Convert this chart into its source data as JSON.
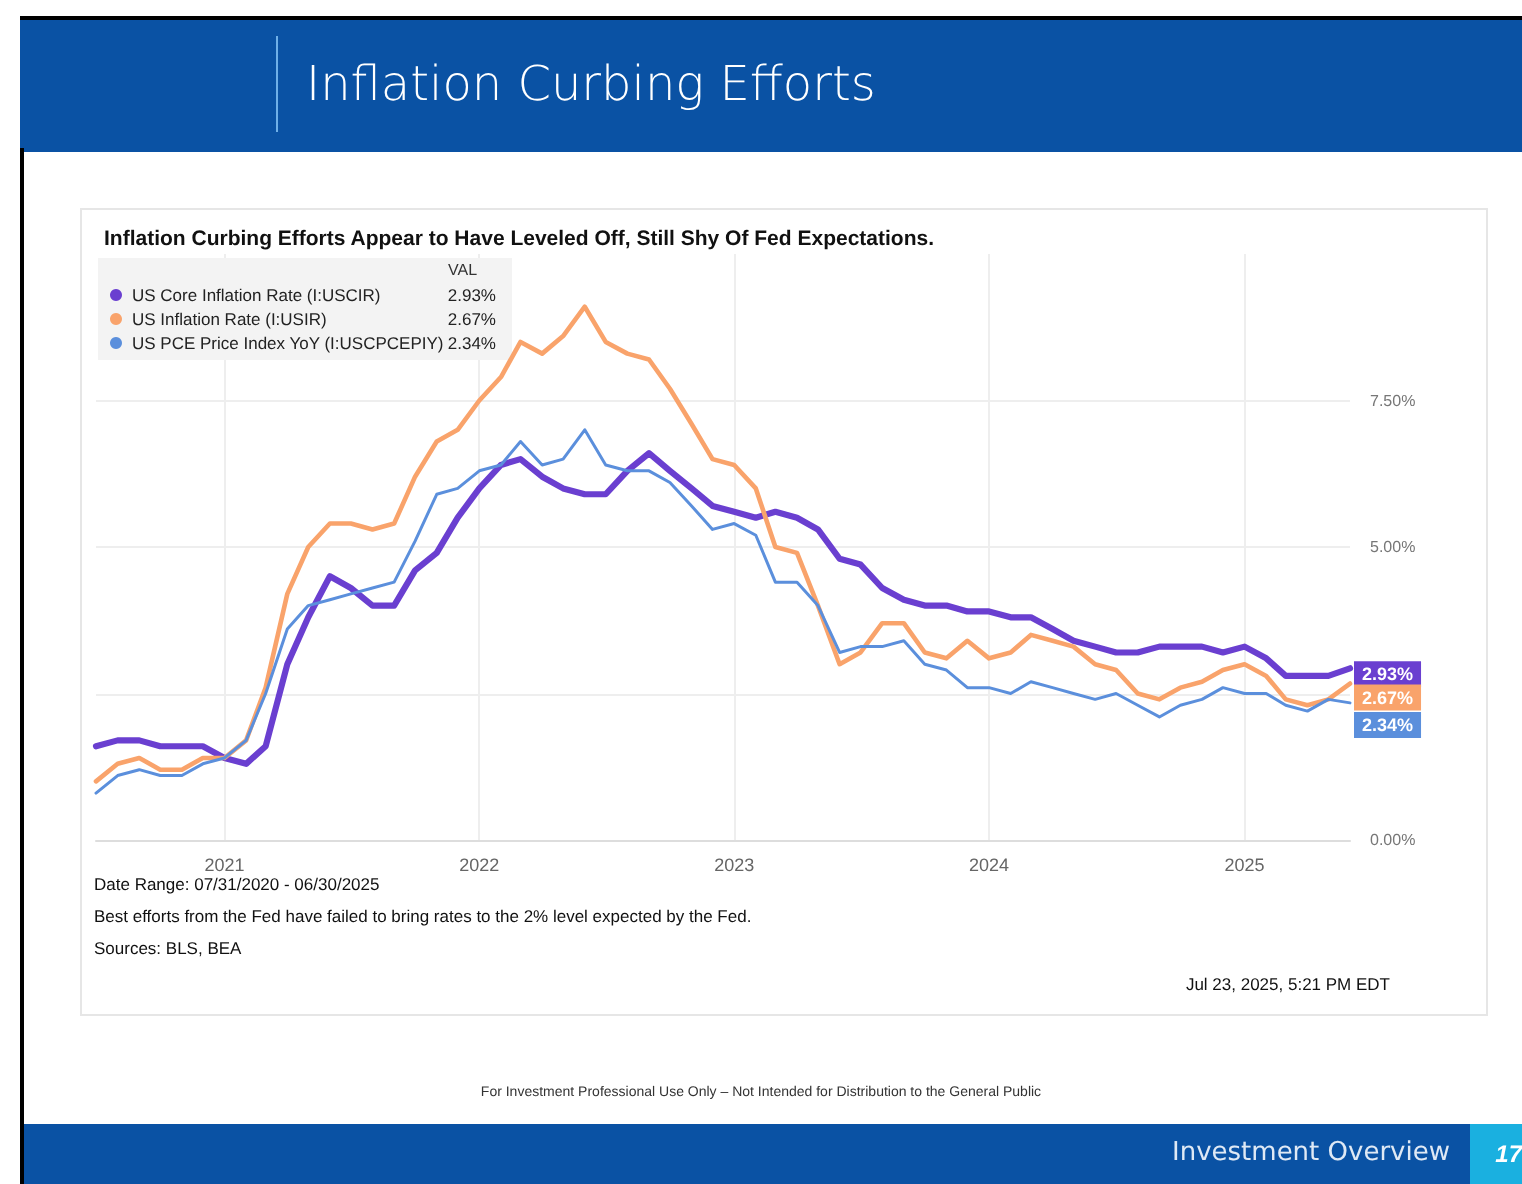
{
  "chart_data": {
    "type": "line",
    "title": "Inflation Curbing Efforts",
    "subtitle": "Inflation Curbing Efforts Appear to Have Leveled Off, Still Shy Of Fed Expectations.",
    "legend_title": "VAL",
    "annotations": [
      "Date Range: 07/31/2020 - 06/30/2025",
      "Best efforts from the Fed have failed to bring rates to the 2% level expected by the Fed.",
      "Sources: BLS, BEA",
      "Jul 23, 2025, 5:21 PM EDT",
      "For Investment Professional Use Only – Not Intended for Distribution to the General Public",
      "Investment Overview",
      "17"
    ],
    "x": [
      "2020-07",
      "2020-08",
      "2020-09",
      "2020-10",
      "2020-11",
      "2020-12",
      "2021-01",
      "2021-02",
      "2021-03",
      "2021-04",
      "2021-05",
      "2021-06",
      "2021-07",
      "2021-08",
      "2021-09",
      "2021-10",
      "2021-11",
      "2021-12",
      "2022-01",
      "2022-02",
      "2022-03",
      "2022-04",
      "2022-05",
      "2022-06",
      "2022-07",
      "2022-08",
      "2022-09",
      "2022-10",
      "2022-11",
      "2022-12",
      "2023-01",
      "2023-02",
      "2023-03",
      "2023-04",
      "2023-05",
      "2023-06",
      "2023-07",
      "2023-08",
      "2023-09",
      "2023-10",
      "2023-11",
      "2023-12",
      "2024-01",
      "2024-02",
      "2024-03",
      "2024-04",
      "2024-05",
      "2024-06",
      "2024-07",
      "2024-08",
      "2024-09",
      "2024-10",
      "2024-11",
      "2024-12",
      "2025-01",
      "2025-02",
      "2025-03",
      "2025-04",
      "2025-05",
      "2025-06"
    ],
    "xlim": [
      "2020-07",
      "2025-06"
    ],
    "xticks": [
      {
        "value": "2021",
        "label": "2021"
      },
      {
        "value": "2022",
        "label": "2022"
      },
      {
        "value": "2023",
        "label": "2023"
      },
      {
        "value": "2024",
        "label": "2024"
      },
      {
        "value": "2025",
        "label": "2025"
      }
    ],
    "ylim": [
      0,
      10
    ],
    "yticks": [
      {
        "value": 0,
        "label": "0.00%"
      },
      {
        "value": 2.5,
        "label": null
      },
      {
        "value": 5,
        "label": "5.00%"
      },
      {
        "value": 7.5,
        "label": "7.50%"
      }
    ],
    "grid": true,
    "legend": "top left",
    "marker": "none",
    "line_style": "solid",
    "series": [
      {
        "name": "US Core Inflation Rate (I:USCIR)",
        "color": "#6a3fd0",
        "values": [
          1.6,
          1.7,
          1.7,
          1.6,
          1.6,
          1.6,
          1.4,
          1.3,
          1.6,
          3.0,
          3.8,
          4.5,
          4.3,
          4.0,
          4.0,
          4.6,
          4.9,
          5.5,
          6.0,
          6.4,
          6.5,
          6.2,
          6.0,
          5.9,
          5.9,
          6.3,
          6.6,
          6.3,
          6.0,
          5.7,
          5.6,
          5.5,
          5.6,
          5.5,
          5.3,
          4.8,
          4.7,
          4.3,
          4.1,
          4.0,
          4.0,
          3.9,
          3.9,
          3.8,
          3.8,
          3.6,
          3.4,
          3.3,
          3.2,
          3.2,
          3.3,
          3.3,
          3.3,
          3.2,
          3.3,
          3.1,
          2.8,
          2.8,
          2.8,
          2.93
        ],
        "value_labels": [
          null,
          null,
          null,
          null,
          null,
          null,
          null,
          null,
          null,
          null,
          null,
          null,
          null,
          null,
          null,
          null,
          null,
          null,
          null,
          null,
          null,
          null,
          null,
          null,
          null,
          null,
          null,
          null,
          null,
          null,
          null,
          null,
          null,
          null,
          null,
          null,
          null,
          null,
          null,
          null,
          null,
          null,
          null,
          null,
          null,
          null,
          null,
          null,
          null,
          null,
          null,
          null,
          null,
          null,
          null,
          null,
          null,
          null,
          null,
          "2.93%"
        ]
      },
      {
        "name": "US Inflation Rate (I:USIR)",
        "color": "#f9a36b",
        "values": [
          1.0,
          1.3,
          1.4,
          1.2,
          1.2,
          1.4,
          1.4,
          1.7,
          2.6,
          4.2,
          5.0,
          5.4,
          5.4,
          5.3,
          5.4,
          6.2,
          6.8,
          7.0,
          7.5,
          7.9,
          8.5,
          8.3,
          8.6,
          9.1,
          8.5,
          8.3,
          8.2,
          7.7,
          7.1,
          6.5,
          6.4,
          6.0,
          5.0,
          4.9,
          4.0,
          3.0,
          3.2,
          3.7,
          3.7,
          3.2,
          3.1,
          3.4,
          3.1,
          3.2,
          3.5,
          3.4,
          3.3,
          3.0,
          2.9,
          2.5,
          2.4,
          2.6,
          2.7,
          2.9,
          3.0,
          2.8,
          2.4,
          2.3,
          2.4,
          2.67
        ],
        "value_labels": [
          null,
          null,
          null,
          null,
          null,
          null,
          null,
          null,
          null,
          null,
          null,
          null,
          null,
          null,
          null,
          null,
          null,
          null,
          null,
          null,
          null,
          null,
          null,
          null,
          null,
          null,
          null,
          null,
          null,
          null,
          null,
          null,
          null,
          null,
          null,
          null,
          null,
          null,
          null,
          null,
          null,
          null,
          null,
          null,
          null,
          null,
          null,
          null,
          null,
          null,
          null,
          null,
          null,
          null,
          null,
          null,
          null,
          null,
          null,
          "2.67%"
        ]
      },
      {
        "name": "US PCE Price Index YoY (I:USCPCEPIY)",
        "color": "#5b8fdc",
        "values": [
          0.8,
          1.1,
          1.2,
          1.1,
          1.1,
          1.3,
          1.4,
          1.7,
          2.5,
          3.6,
          4.0,
          4.1,
          4.2,
          4.3,
          4.4,
          5.1,
          5.9,
          6.0,
          6.3,
          6.4,
          6.8,
          6.4,
          6.5,
          7.0,
          6.4,
          6.3,
          6.3,
          6.1,
          5.7,
          5.3,
          5.4,
          5.2,
          4.4,
          4.4,
          4.0,
          3.2,
          3.3,
          3.3,
          3.4,
          3.0,
          2.9,
          2.6,
          2.6,
          2.5,
          2.7,
          2.6,
          2.5,
          2.4,
          2.5,
          2.3,
          2.1,
          2.3,
          2.4,
          2.6,
          2.5,
          2.5,
          2.3,
          2.2,
          2.4,
          2.34
        ],
        "value_labels": [
          null,
          null,
          null,
          null,
          null,
          null,
          null,
          null,
          null,
          null,
          null,
          null,
          null,
          null,
          null,
          null,
          null,
          null,
          null,
          null,
          null,
          null,
          null,
          null,
          null,
          null,
          null,
          null,
          null,
          null,
          null,
          null,
          null,
          null,
          null,
          null,
          null,
          null,
          null,
          null,
          null,
          null,
          null,
          null,
          null,
          null,
          null,
          null,
          null,
          null,
          null,
          null,
          null,
          null,
          null,
          null,
          null,
          null,
          null,
          "2.34%"
        ]
      }
    ]
  }
}
